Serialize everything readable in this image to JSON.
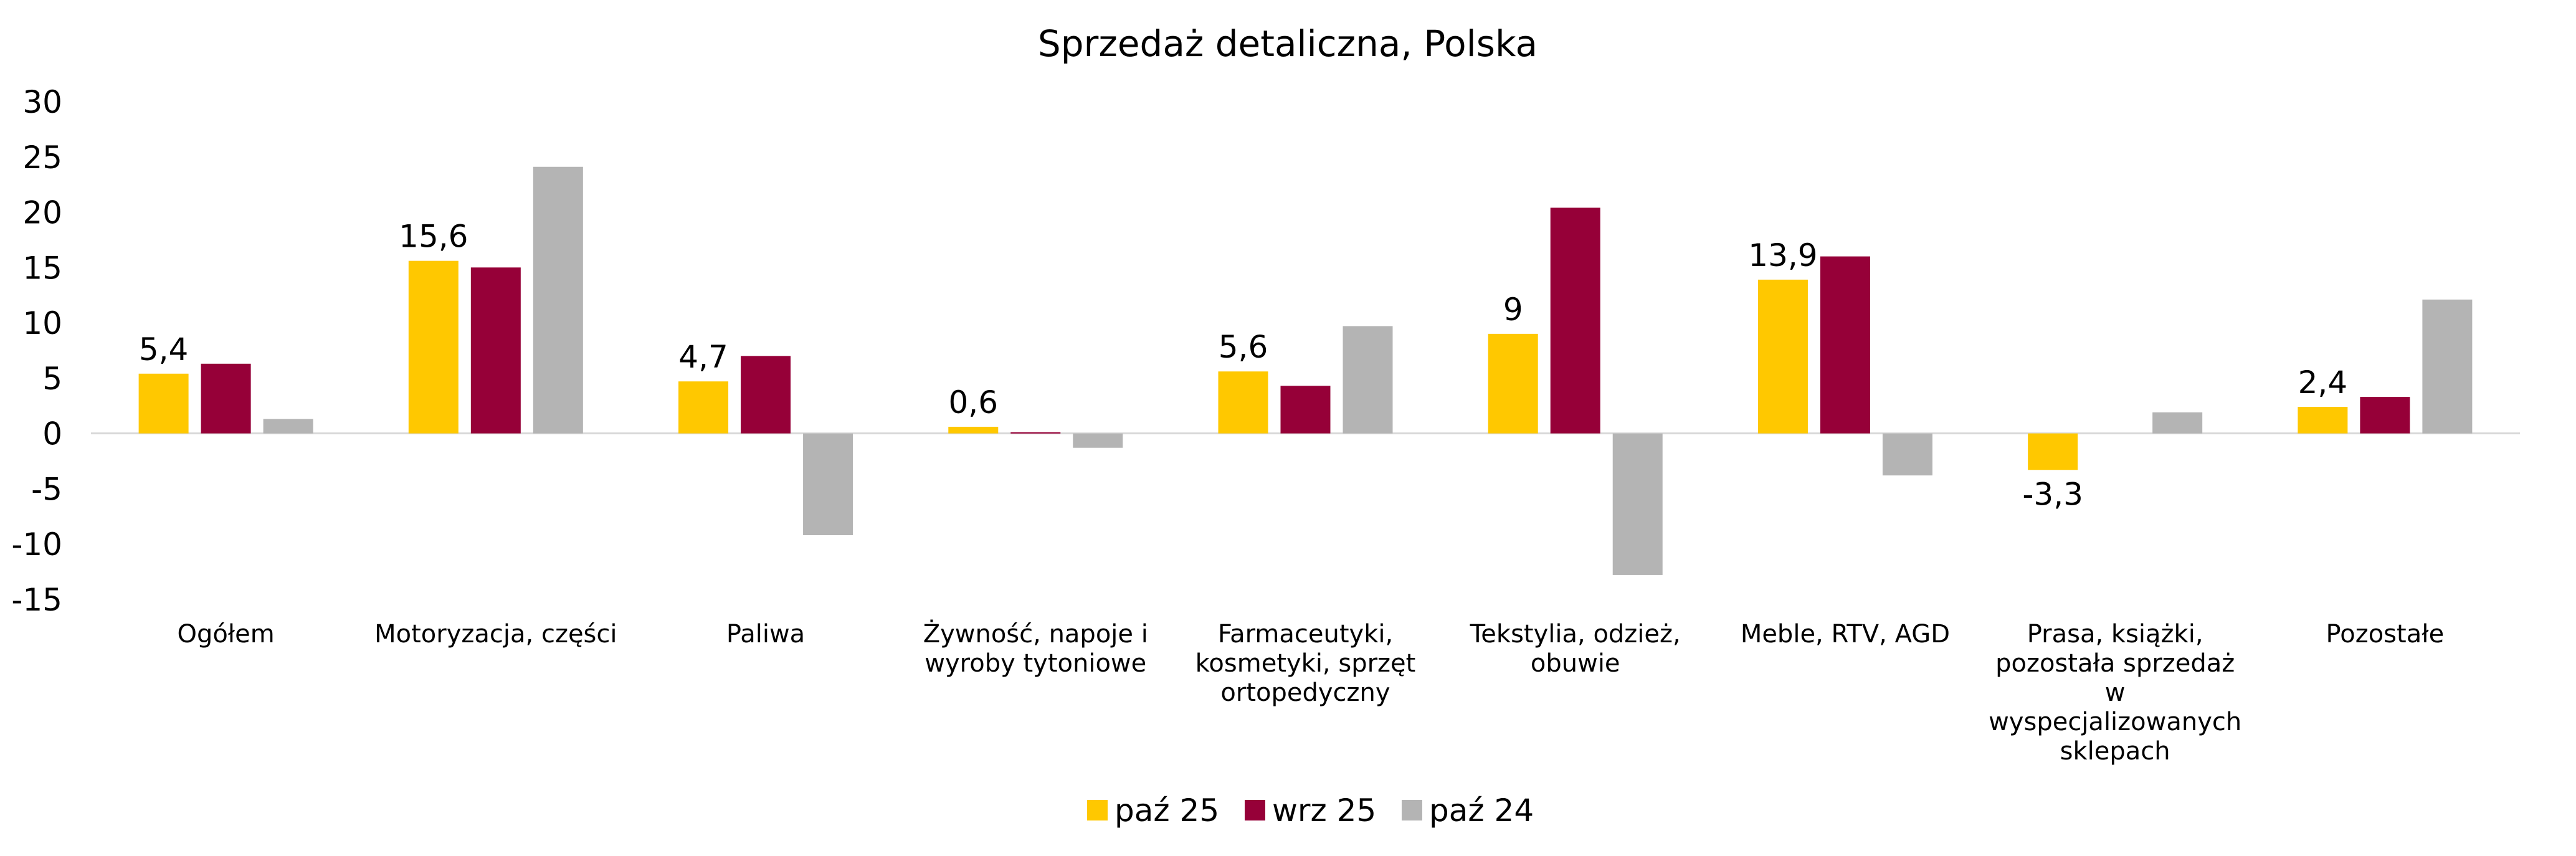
{
  "chart_data": {
    "type": "bar",
    "title": "Sprzedaż detaliczna, Polska",
    "xlabel": "",
    "ylabel": "",
    "ylim": [
      -15,
      30
    ],
    "yticks": [
      30,
      25,
      20,
      15,
      10,
      5,
      0,
      -5,
      -10,
      -15
    ],
    "grid": false,
    "legend_position": "bottom",
    "categories": [
      "Ogółem",
      "Motoryzacja, części",
      "Paliwa",
      "Żywność, napoje i wyroby tytoniowe",
      "Farmaceutyki, kosmetyki, sprzęt ortopedyczny",
      "Tekstylia, odzież, obuwie",
      "Meble, RTV, AGD",
      "Prasa, książki, pozostała sprzedaż w wyspecjalizowanych sklepach",
      "Pozostałe"
    ],
    "category_lines": [
      [
        "Ogółem"
      ],
      [
        "Motoryzacja, części"
      ],
      [
        "Paliwa"
      ],
      [
        "Żywność, napoje i",
        "wyroby tytoniowe"
      ],
      [
        "Farmaceutyki,",
        "kosmetyki, sprzęt",
        "ortopedyczny"
      ],
      [
        "Tekstylia, odzież,",
        "obuwie"
      ],
      [
        "Meble, RTV, AGD"
      ],
      [
        "Prasa, książki,",
        "pozostała sprzedaż",
        "w",
        "wyspecjalizowanych",
        "sklepach"
      ],
      [
        "Pozostałe"
      ]
    ],
    "series": [
      {
        "name": "paź 25",
        "color": "#FFC800",
        "values": [
          5.4,
          15.6,
          4.7,
          0.6,
          5.6,
          9,
          13.9,
          -3.3,
          2.4
        ],
        "data_labels": [
          "5,4",
          "15,6",
          "4,7",
          "0,6",
          "5,6",
          "9",
          "13,9",
          "-3,3",
          "2,4"
        ]
      },
      {
        "name": "wrz 25",
        "color": "#960038",
        "values": [
          6.3,
          15.0,
          7.0,
          0.1,
          4.3,
          20.4,
          16.0,
          0.0,
          3.3
        ]
      },
      {
        "name": "paź 24",
        "color": "#B4B4B4",
        "values": [
          1.3,
          24.1,
          -9.2,
          -1.3,
          9.7,
          -12.8,
          -3.8,
          1.9,
          12.1
        ]
      }
    ]
  },
  "colors": {
    "axis": "#D9D9D9",
    "text": "#000000"
  }
}
